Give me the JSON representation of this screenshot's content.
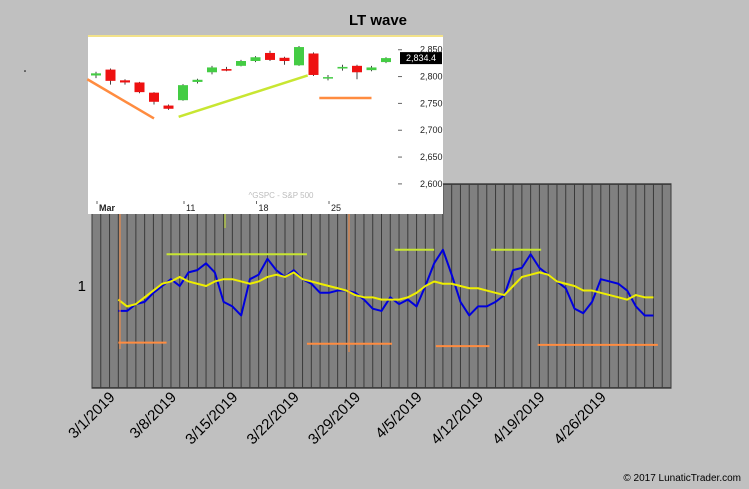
{
  "chart_data": [
    {
      "type": "line",
      "title": "LT wave",
      "y_tick_labels": [
        "1"
      ],
      "y_tick_values": [
        1
      ],
      "ylim": [
        0.55,
        1.45
      ],
      "x_tick_labels": [
        "3/1/2019",
        "3/8/2019",
        "3/15/2019",
        "3/22/2019",
        "3/29/2019",
        "4/5/2019",
        "4/12/2019",
        "4/19/2019",
        "4/26/2019"
      ],
      "x_range": [
        0,
        60
      ],
      "x_tick_values": [
        3,
        10,
        17,
        24,
        31,
        38,
        45,
        52,
        59
      ],
      "grid": "vertical",
      "series": [
        {
          "color": "#0000dd",
          "values": [
            [
              3,
              0.89
            ],
            [
              4,
              0.89
            ],
            [
              5,
              0.92
            ],
            [
              6,
              0.93
            ],
            [
              7,
              0.97
            ],
            [
              8,
              1.0
            ],
            [
              9,
              1.03
            ],
            [
              10,
              1.0
            ],
            [
              11,
              1.06
            ],
            [
              12,
              1.07
            ],
            [
              13,
              1.1
            ],
            [
              14,
              1.06
            ],
            [
              15,
              0.93
            ],
            [
              16,
              0.91
            ],
            [
              17,
              0.87
            ],
            [
              18,
              1.03
            ],
            [
              19,
              1.05
            ],
            [
              20,
              1.12
            ],
            [
              21,
              1.07
            ],
            [
              22,
              1.04
            ],
            [
              23,
              1.07
            ],
            [
              24,
              1.03
            ],
            [
              25,
              1.01
            ],
            [
              26,
              0.97
            ],
            [
              27,
              0.97
            ],
            [
              28,
              0.98
            ],
            [
              29,
              0.98
            ],
            [
              30,
              0.97
            ],
            [
              31,
              0.94
            ],
            [
              32,
              0.9
            ],
            [
              33,
              0.89
            ],
            [
              34,
              0.95
            ],
            [
              35,
              0.92
            ],
            [
              36,
              0.94
            ],
            [
              37,
              0.91
            ],
            [
              38,
              1.0
            ],
            [
              39,
              1.1
            ],
            [
              40,
              1.16
            ],
            [
              41,
              1.05
            ],
            [
              42,
              0.93
            ],
            [
              43,
              0.87
            ],
            [
              44,
              0.91
            ],
            [
              45,
              0.91
            ],
            [
              46,
              0.93
            ],
            [
              47,
              0.96
            ],
            [
              48,
              1.07
            ],
            [
              49,
              1.08
            ],
            [
              50,
              1.14
            ],
            [
              51,
              1.08
            ],
            [
              52,
              1.05
            ],
            [
              53,
              1.02
            ],
            [
              54,
              0.99
            ],
            [
              55,
              0.9
            ],
            [
              56,
              0.88
            ],
            [
              57,
              0.93
            ],
            [
              58,
              1.03
            ],
            [
              59,
              1.02
            ],
            [
              60,
              1.01
            ],
            [
              61,
              0.98
            ],
            [
              62,
              0.91
            ],
            [
              63,
              0.87
            ],
            [
              64,
              0.87
            ]
          ]
        },
        {
          "color": "#eeee00",
          "values": [
            [
              3,
              0.94
            ],
            [
              4,
              0.91
            ],
            [
              5,
              0.92
            ],
            [
              6,
              0.95
            ],
            [
              7,
              0.98
            ],
            [
              8,
              1.01
            ],
            [
              9,
              1.02
            ],
            [
              10,
              1.04
            ],
            [
              11,
              1.02
            ],
            [
              12,
              1.01
            ],
            [
              13,
              1.0
            ],
            [
              14,
              1.02
            ],
            [
              15,
              1.03
            ],
            [
              16,
              1.03
            ],
            [
              17,
              1.02
            ],
            [
              18,
              1.01
            ],
            [
              19,
              1.02
            ],
            [
              20,
              1.04
            ],
            [
              21,
              1.05
            ],
            [
              22,
              1.04
            ],
            [
              23,
              1.06
            ],
            [
              24,
              1.03
            ],
            [
              25,
              1.02
            ],
            [
              26,
              1.01
            ],
            [
              27,
              1.0
            ],
            [
              28,
              0.99
            ],
            [
              29,
              0.98
            ],
            [
              30,
              0.96
            ],
            [
              31,
              0.95
            ],
            [
              32,
              0.95
            ],
            [
              33,
              0.94
            ],
            [
              34,
              0.94
            ],
            [
              35,
              0.94
            ],
            [
              36,
              0.95
            ],
            [
              37,
              0.97
            ],
            [
              38,
              1.0
            ],
            [
              39,
              1.02
            ],
            [
              40,
              1.01
            ],
            [
              41,
              1.01
            ],
            [
              42,
              1.0
            ],
            [
              43,
              0.99
            ],
            [
              44,
              0.99
            ],
            [
              45,
              0.98
            ],
            [
              46,
              0.97
            ],
            [
              47,
              0.96
            ],
            [
              48,
              1.0
            ],
            [
              49,
              1.04
            ],
            [
              50,
              1.05
            ],
            [
              51,
              1.06
            ],
            [
              52,
              1.05
            ],
            [
              53,
              1.02
            ],
            [
              54,
              1.01
            ],
            [
              55,
              1.0
            ],
            [
              56,
              0.98
            ],
            [
              57,
              0.98
            ],
            [
              58,
              0.97
            ],
            [
              59,
              0.96
            ],
            [
              60,
              0.95
            ],
            [
              61,
              0.94
            ],
            [
              62,
              0.96
            ],
            [
              63,
              0.95
            ],
            [
              64,
              0.95
            ]
          ]
        }
      ],
      "overlay_lines": [
        {
          "color": "#ff8c40",
          "x1": 3.0,
          "x2": 8.5,
          "y": 0.75
        },
        {
          "color": "#ff8c40",
          "x1": 24.5,
          "x2": 34.2,
          "y": 0.745
        },
        {
          "color": "#ff8c40",
          "x1": 39.2,
          "x2": 45.3,
          "y": 0.735
        },
        {
          "color": "#ff8c40",
          "x1": 50.8,
          "x2": 64.5,
          "y": 0.74
        },
        {
          "color": "#c8e632",
          "x1": 8.5,
          "x2": 24.5,
          "y": 1.14
        },
        {
          "color": "#c8e632",
          "x1": 34.5,
          "x2": 39.0,
          "y": 1.16
        },
        {
          "color": "#c8e632",
          "x1": 45.5,
          "x2": 51.2,
          "y": 1.16
        }
      ]
    },
    {
      "type": "candlestick",
      "watermark": "^GSPC - S&P 500",
      "y_tick_labels": [
        "2,850",
        "2,800",
        "2,750",
        "2,700",
        "2,650",
        "2,600"
      ],
      "y_tick_values": [
        2850,
        2800,
        2750,
        2700,
        2650,
        2600
      ],
      "ylim": [
        2570,
        2870
      ],
      "x_tick_labels": [
        "Mar",
        "11",
        "18",
        "25"
      ],
      "x_tick_positions": [
        0,
        6,
        11,
        16
      ],
      "last_price": "2,834.4",
      "last_value": 2834.4,
      "up_color": "#44cc44",
      "down_color": "#ee1111",
      "candles": [
        {
          "o": 2802,
          "c": 2806,
          "h": 2809,
          "l": 2797
        },
        {
          "o": 2813,
          "c": 2792,
          "h": 2815,
          "l": 2785
        },
        {
          "o": 2793,
          "c": 2789,
          "h": 2795,
          "l": 2785
        },
        {
          "o": 2789,
          "c": 2771,
          "h": 2790,
          "l": 2769
        },
        {
          "o": 2770,
          "c": 2753,
          "h": 2771,
          "l": 2748
        },
        {
          "o": 2746,
          "c": 2740,
          "h": 2748,
          "l": 2738
        },
        {
          "o": 2756,
          "c": 2784,
          "h": 2786,
          "l": 2755
        },
        {
          "o": 2790,
          "c": 2794,
          "h": 2796,
          "l": 2787
        },
        {
          "o": 2808,
          "c": 2817,
          "h": 2820,
          "l": 2804
        },
        {
          "o": 2814,
          "c": 2811,
          "h": 2818,
          "l": 2810
        },
        {
          "o": 2820,
          "c": 2829,
          "h": 2831,
          "l": 2819
        },
        {
          "o": 2829,
          "c": 2836,
          "h": 2838,
          "l": 2827
        },
        {
          "o": 2844,
          "c": 2831,
          "h": 2848,
          "l": 2829
        },
        {
          "o": 2835,
          "c": 2829,
          "h": 2837,
          "l": 2822
        },
        {
          "o": 2821,
          "c": 2855,
          "h": 2857,
          "l": 2820
        },
        {
          "o": 2843,
          "c": 2803,
          "h": 2845,
          "l": 2801
        },
        {
          "o": 2797,
          "c": 2799,
          "h": 2803,
          "l": 2793
        },
        {
          "o": 2815,
          "c": 2818,
          "h": 2822,
          "l": 2811
        },
        {
          "o": 2820,
          "c": 2808,
          "h": 2822,
          "l": 2795
        },
        {
          "o": 2812,
          "c": 2817,
          "h": 2820,
          "l": 2810
        },
        {
          "o": 2827,
          "c": 2834.4,
          "h": 2836,
          "l": 2825
        }
      ],
      "trend_lines": [
        {
          "color": "#ff8c40",
          "from": [
            -0.6,
            2795
          ],
          "to": [
            4.0,
            2722
          ]
        },
        {
          "color": "#c8e632",
          "from": [
            5.7,
            2725
          ],
          "to": [
            14.6,
            2802
          ]
        },
        {
          "color": "#ff8c40",
          "from": [
            15.4,
            2760
          ],
          "to": [
            19.0,
            2760
          ]
        }
      ]
    }
  ],
  "footer": {
    "copyright": "© 2017 LunaticTrader.com"
  }
}
